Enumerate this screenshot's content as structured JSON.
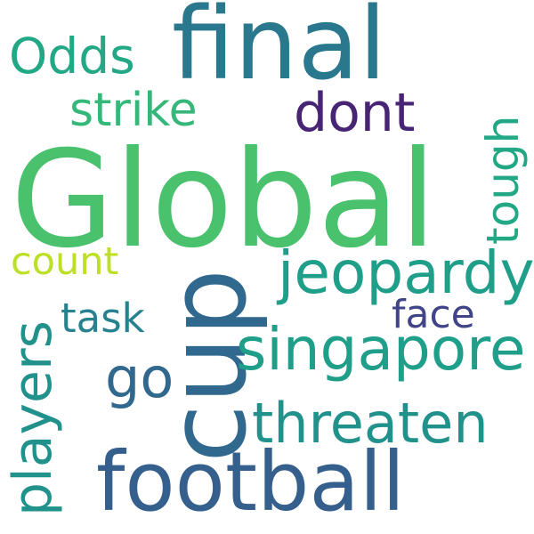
{
  "words": [
    {
      "text": "final",
      "color": "#2a788e"
    },
    {
      "text": "Odds",
      "color": "#22a884"
    },
    {
      "text": "strike",
      "color": "#35b779"
    },
    {
      "text": "dont",
      "color": "#482475"
    },
    {
      "text": "Global",
      "color": "#4ac16d"
    },
    {
      "text": "tough",
      "color": "#22a884"
    },
    {
      "text": "count",
      "color": "#bddf26"
    },
    {
      "text": "jeopardy",
      "color": "#1f9e89"
    },
    {
      "text": "cup",
      "color": "#31688e"
    },
    {
      "text": "task",
      "color": "#26828e"
    },
    {
      "text": "face",
      "color": "#414487"
    },
    {
      "text": "players",
      "color": "#21918c"
    },
    {
      "text": "singapore",
      "color": "#1f9e89"
    },
    {
      "text": "go",
      "color": "#31688e"
    },
    {
      "text": "threaten",
      "color": "#21918c"
    },
    {
      "text": "football",
      "color": "#355f8d"
    }
  ]
}
